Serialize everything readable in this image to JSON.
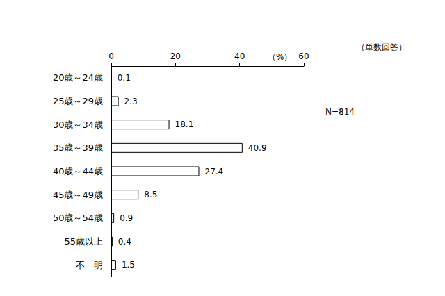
{
  "chart_data": {
    "type": "bar",
    "orientation": "horizontal",
    "categories": [
      "20歳～24歳",
      "25歳～29歳",
      "30歳～34歳",
      "35歳～39歳",
      "40歳～44歳",
      "45歳～49歳",
      "50歳～54歳",
      "55歳以上",
      "不　明"
    ],
    "values": [
      0.1,
      2.3,
      18.1,
      40.9,
      27.4,
      8.5,
      0.9,
      0.4,
      1.5
    ],
    "color": "#ffffff",
    "x_label": "（%）",
    "annotations": [
      "（単数回答）",
      "N=814"
    ],
    "xlim": [
      0,
      60
    ],
    "xticks": [
      0,
      20,
      40,
      60
    ],
    "grid": false,
    "data_labels": true
  }
}
